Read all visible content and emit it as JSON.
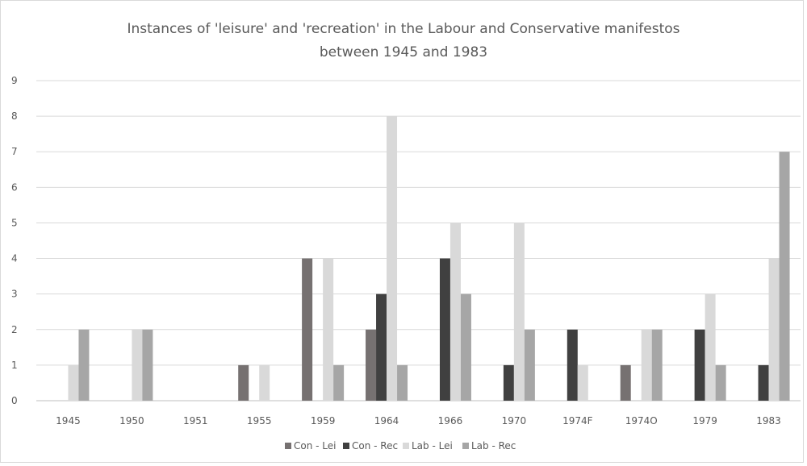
{
  "chart_data": {
    "type": "bar",
    "title": "Instances of 'leisure' and 'recreation' in the Labour and Conservative manifestos",
    "subtitle": "between 1945 and 1983",
    "xlabel": "",
    "ylabel": "",
    "ylim": [
      0,
      9
    ],
    "yticks": [
      "0",
      "1",
      "2",
      "3",
      "4",
      "5",
      "6",
      "7",
      "8",
      "9"
    ],
    "grid": true,
    "legend_position": "bottom",
    "categories": [
      "1945",
      "1950",
      "1951",
      "1955",
      "1959",
      "1964",
      "1966",
      "1970",
      "1974F",
      "1974O",
      "1979",
      "1983"
    ],
    "series": [
      {
        "name": "Con - Lei",
        "color": "#767171",
        "values": [
          0,
          0,
          0,
          1,
          4,
          2,
          0,
          0,
          0,
          1,
          0,
          0
        ]
      },
      {
        "name": "Con - Rec",
        "color": "#404040",
        "values": [
          0,
          0,
          0,
          0,
          0,
          3,
          4,
          1,
          2,
          0,
          2,
          1
        ]
      },
      {
        "name": "Lab - Lei",
        "color": "#d9d9d9",
        "values": [
          1,
          2,
          0,
          1,
          4,
          8,
          5,
          5,
          1,
          2,
          3,
          4
        ]
      },
      {
        "name": "Lab - Rec",
        "color": "#a6a6a6",
        "values": [
          2,
          2,
          0,
          0,
          1,
          1,
          3,
          2,
          0,
          2,
          1,
          7
        ]
      }
    ]
  }
}
